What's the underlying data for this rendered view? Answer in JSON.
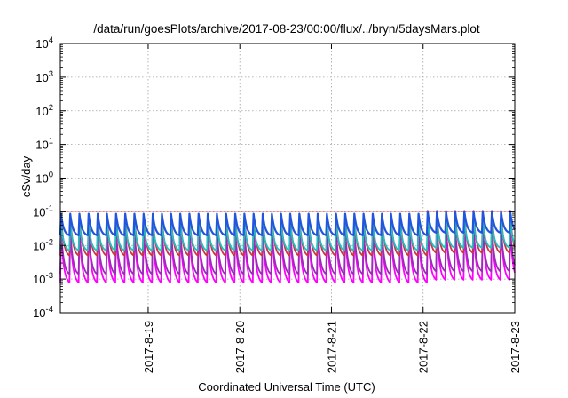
{
  "chart_data": {
    "type": "line",
    "title": "/data/run/goesPlots/archive/2017-08-23/00:00/flux/../bryn/5daysMars.plot",
    "xlabel": "Coordinated Universal Time (UTC)",
    "ylabel": "cSv/day",
    "y_scale": "log",
    "ylim_exponents": [
      -4,
      4
    ],
    "y_tick_labels": [
      {
        "base": "10",
        "exp": "-4",
        "power": -4
      },
      {
        "base": "10",
        "exp": "-3",
        "power": -3
      },
      {
        "base": "10",
        "exp": "-2",
        "power": -2
      },
      {
        "base": "10",
        "exp": "-1",
        "power": -1
      },
      {
        "base": "10",
        "exp": "0",
        "power": 0
      },
      {
        "base": "10",
        "exp": "1",
        "power": 1
      },
      {
        "base": "10",
        "exp": "2",
        "power": 2
      },
      {
        "base": "10",
        "exp": "3",
        "power": 3
      },
      {
        "base": "10",
        "exp": "4",
        "power": 4
      }
    ],
    "x_start": "2017-08-18 01:00",
    "x_end": "2017-08-23 00:00",
    "x_tick_labels": [
      {
        "label": "2017-8-19",
        "date": "2017-08-19"
      },
      {
        "label": "2017-8-20",
        "date": "2017-08-20"
      },
      {
        "label": "2017-8-21",
        "date": "2017-08-21"
      },
      {
        "label": "2017-8-22",
        "date": "2017-08-22"
      },
      {
        "label": "2017-8-23",
        "date": "2017-08-23"
      }
    ],
    "grid": true,
    "pattern": {
      "period_hours": 2.4,
      "note_peak_exponent": -1.0,
      "late_peak_exponent": -0.95
    },
    "series": [
      {
        "color": "#ff00ff",
        "peak": -1.55,
        "trough": -3.1
      },
      {
        "color": "#9a2bb8",
        "peak": -1.5,
        "trough": -2.85
      },
      {
        "color": "#cc3344",
        "peak": -1.1,
        "trough": -2.3
      },
      {
        "color": "#20c0c0",
        "peak": -1.3,
        "trough": -2.15
      },
      {
        "color": "#2255dd",
        "peak": -1.05,
        "trough": -1.7
      }
    ]
  }
}
